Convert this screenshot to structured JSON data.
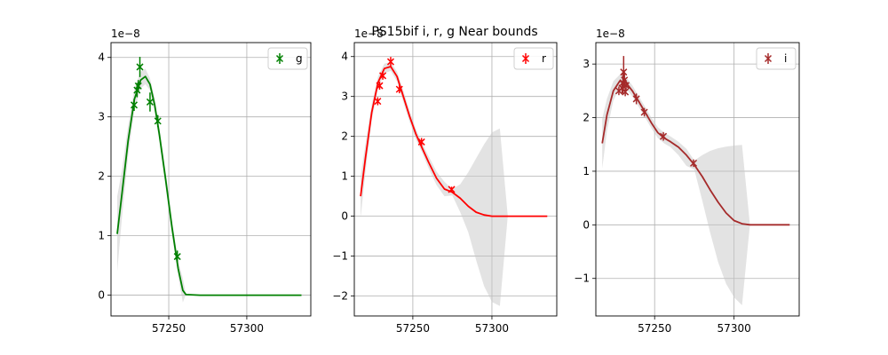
{
  "figure": {
    "title": "PS15bif  i, r, g Near bounds"
  },
  "chart_data": [
    {
      "type": "line",
      "band": "g",
      "color": "#008000",
      "band_color": "#c8c8c8",
      "legend": [
        "g"
      ],
      "legend_position": "top-right",
      "grid": true,
      "offset_label": "1e−8",
      "xlim": [
        57213,
        57341
      ],
      "ylim": [
        -0.35,
        4.25
      ],
      "xticks": [
        57250,
        57300
      ],
      "yticks": [
        0,
        1,
        2,
        3,
        4
      ],
      "observations": [
        {
          "x": 57227.8,
          "y": 3.2,
          "err": 0.1
        },
        {
          "x": 57229.7,
          "y": 3.45,
          "err": 0.12
        },
        {
          "x": 57230.5,
          "y": 3.52,
          "err": 0.1
        },
        {
          "x": 57231.5,
          "y": 3.84,
          "err": 0.17
        },
        {
          "x": 57238.0,
          "y": 3.25,
          "err": 0.16
        },
        {
          "x": 57243.0,
          "y": 2.93,
          "err": 0.1
        },
        {
          "x": 57255.5,
          "y": 0.65,
          "err": 0.1
        }
      ],
      "model": {
        "x": [
          57217,
          57220,
          57224,
          57228,
          57232,
          57235,
          57238,
          57241,
          57244,
          57248,
          57252,
          57256,
          57259,
          57261,
          57270,
          57300,
          57335
        ],
        "y": [
          1.03,
          1.7,
          2.6,
          3.3,
          3.62,
          3.68,
          3.55,
          3.2,
          2.7,
          1.95,
          1.15,
          0.45,
          0.08,
          0.01,
          0.0,
          0.0,
          0.0
        ]
      },
      "band_lower": [
        0.4,
        1.3,
        2.35,
        3.12,
        3.48,
        3.55,
        3.45,
        3.08,
        2.58,
        1.82,
        1.02,
        0.32,
        -0.12,
        0.01,
        0.0,
        0.0,
        0.0
      ],
      "band_upper": [
        1.66,
        2.1,
        2.85,
        3.48,
        3.76,
        3.81,
        3.65,
        3.32,
        2.82,
        2.08,
        1.28,
        0.58,
        0.28,
        0.01,
        0.0,
        0.0,
        0.0
      ]
    },
    {
      "type": "line",
      "band": "r",
      "color": "#ff0000",
      "band_color": "#c8c8c8",
      "legend": [
        "r"
      ],
      "legend_position": "top-right",
      "grid": true,
      "offset_label": "1e−8",
      "xlim": [
        57213,
        57341
      ],
      "ylim": [
        -2.5,
        4.35
      ],
      "xticks": [
        57250,
        57300
      ],
      "yticks": [
        -2,
        -1,
        0,
        1,
        2,
        3,
        4
      ],
      "observations": [
        {
          "x": 57227.8,
          "y": 2.88,
          "err": 0.1
        },
        {
          "x": 57229.0,
          "y": 3.27,
          "err": 0.1
        },
        {
          "x": 57231.0,
          "y": 3.52,
          "err": 0.1
        },
        {
          "x": 57236.0,
          "y": 3.87,
          "err": 0.12
        },
        {
          "x": 57241.5,
          "y": 3.18,
          "err": 0.1
        },
        {
          "x": 57255.5,
          "y": 1.86,
          "err": 0.1
        },
        {
          "x": 57274.5,
          "y": 0.67,
          "err": 0.07
        }
      ],
      "model": {
        "x": [
          57217,
          57220,
          57224,
          57228,
          57232,
          57236,
          57240,
          57244,
          57248,
          57252,
          57256,
          57260,
          57265,
          57270,
          57275,
          57280,
          57285,
          57290,
          57295,
          57300,
          57305,
          57310,
          57320,
          57335
        ],
        "y": [
          0.5,
          1.45,
          2.6,
          3.35,
          3.7,
          3.75,
          3.5,
          3.0,
          2.5,
          2.05,
          1.7,
          1.35,
          0.95,
          0.68,
          0.6,
          0.45,
          0.25,
          0.1,
          0.03,
          0.0,
          0.0,
          0.0,
          0.0,
          0.0
        ]
      },
      "band_lower": [
        -0.05,
        1.1,
        2.4,
        3.2,
        3.58,
        3.64,
        3.38,
        2.86,
        2.36,
        1.92,
        1.58,
        1.2,
        0.78,
        0.5,
        0.52,
        0.1,
        -0.4,
        -1.1,
        -1.75,
        -2.15,
        -2.25,
        0.0,
        0.0,
        0.0
      ],
      "band_upper": [
        1.0,
        1.8,
        2.8,
        3.5,
        3.82,
        3.86,
        3.62,
        3.14,
        2.64,
        2.18,
        1.82,
        1.5,
        1.12,
        0.86,
        0.68,
        0.8,
        1.1,
        1.45,
        1.8,
        2.1,
        2.2,
        0.0,
        0.0,
        0.0
      ]
    },
    {
      "type": "line",
      "band": "i",
      "color": "#a52a2a",
      "band_color": "#c8c8c8",
      "legend": [
        "i"
      ],
      "legend_position": "top-right",
      "grid": true,
      "offset_label": "1e−8",
      "xlim": [
        57213,
        57341
      ],
      "ylim": [
        -1.7,
        3.4
      ],
      "xticks": [
        57250,
        57300
      ],
      "yticks": [
        -1,
        0,
        1,
        2,
        3
      ],
      "observations": [
        {
          "x": 57227.5,
          "y": 2.5,
          "err": 0.08
        },
        {
          "x": 57229.5,
          "y": 2.55,
          "err": 0.1
        },
        {
          "x": 57230.0,
          "y": 2.65,
          "err": 0.2
        },
        {
          "x": 57230.5,
          "y": 2.85,
          "err": 0.3
        },
        {
          "x": 57231.0,
          "y": 2.7,
          "err": 0.15
        },
        {
          "x": 57231.5,
          "y": 2.48,
          "err": 0.08
        },
        {
          "x": 57232.0,
          "y": 2.6,
          "err": 0.1
        },
        {
          "x": 57238.5,
          "y": 2.35,
          "err": 0.1
        },
        {
          "x": 57243.5,
          "y": 2.1,
          "err": 0.08
        },
        {
          "x": 57255.5,
          "y": 1.65,
          "err": 0.08
        },
        {
          "x": 57274.5,
          "y": 1.15,
          "err": 0.07
        }
      ],
      "model": {
        "x": [
          57217,
          57220,
          57224,
          57228,
          57232,
          57236,
          57240,
          57244,
          57248,
          57252,
          57256,
          57260,
          57265,
          57270,
          57275,
          57280,
          57285,
          57290,
          57295,
          57300,
          57305,
          57310,
          57315,
          57320,
          57335
        ],
        "y": [
          1.52,
          2.05,
          2.5,
          2.68,
          2.65,
          2.5,
          2.3,
          2.1,
          1.9,
          1.72,
          1.62,
          1.55,
          1.45,
          1.3,
          1.12,
          0.9,
          0.65,
          0.42,
          0.22,
          0.08,
          0.02,
          0.0,
          0.0,
          0.0,
          0.0
        ]
      },
      "band_lower": [
        1.05,
        1.75,
        2.32,
        2.55,
        2.54,
        2.4,
        2.2,
        2.0,
        1.8,
        1.62,
        1.52,
        1.45,
        1.3,
        1.1,
        1.03,
        0.45,
        -0.15,
        -0.7,
        -1.1,
        -1.35,
        -1.5,
        0.0,
        0.0,
        0.0,
        0.0
      ],
      "band_upper": [
        1.98,
        2.35,
        2.68,
        2.8,
        2.76,
        2.6,
        2.4,
        2.2,
        2.0,
        1.82,
        1.72,
        1.65,
        1.55,
        1.42,
        1.2,
        1.3,
        1.38,
        1.43,
        1.46,
        1.48,
        1.49,
        0.0,
        0.0,
        0.0,
        0.0
      ]
    }
  ]
}
